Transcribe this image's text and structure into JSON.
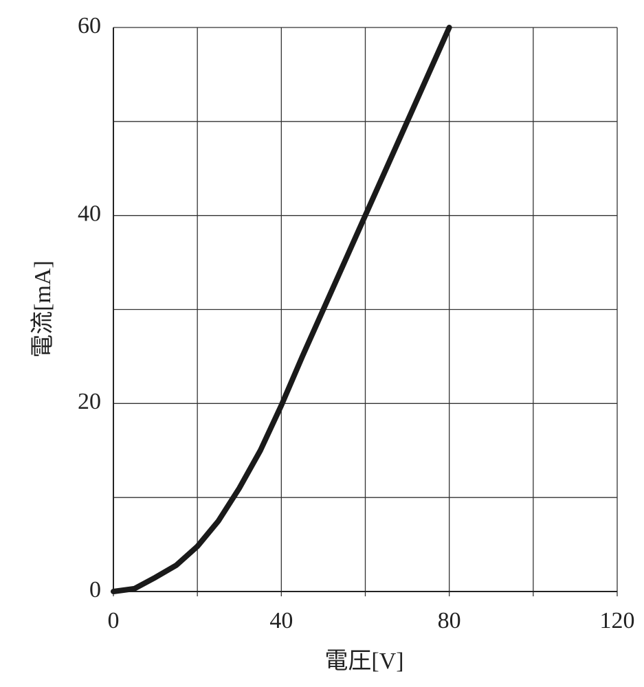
{
  "chart_data": {
    "type": "line",
    "x_label": "電圧[V]",
    "y_label": "電流[mA]",
    "x": [
      0,
      5,
      10,
      15,
      20,
      25,
      30,
      35,
      40,
      45,
      50,
      55,
      60,
      65,
      70,
      75,
      80
    ],
    "values": [
      0,
      0.3,
      1.5,
      2.8,
      4.8,
      7.5,
      11,
      15,
      19.8,
      25,
      30,
      35,
      40,
      45,
      50,
      55,
      60
    ],
    "color": "#1a1a1a",
    "xlim": [
      0,
      120
    ],
    "xticks": [
      0,
      40,
      80,
      120
    ],
    "x_minor_ticks": [
      20,
      60,
      100
    ],
    "ylim": [
      0,
      60
    ],
    "yticks": [
      0,
      20,
      40,
      60
    ],
    "y_minor_ticks": [
      10,
      30,
      50
    ],
    "grid": true
  }
}
